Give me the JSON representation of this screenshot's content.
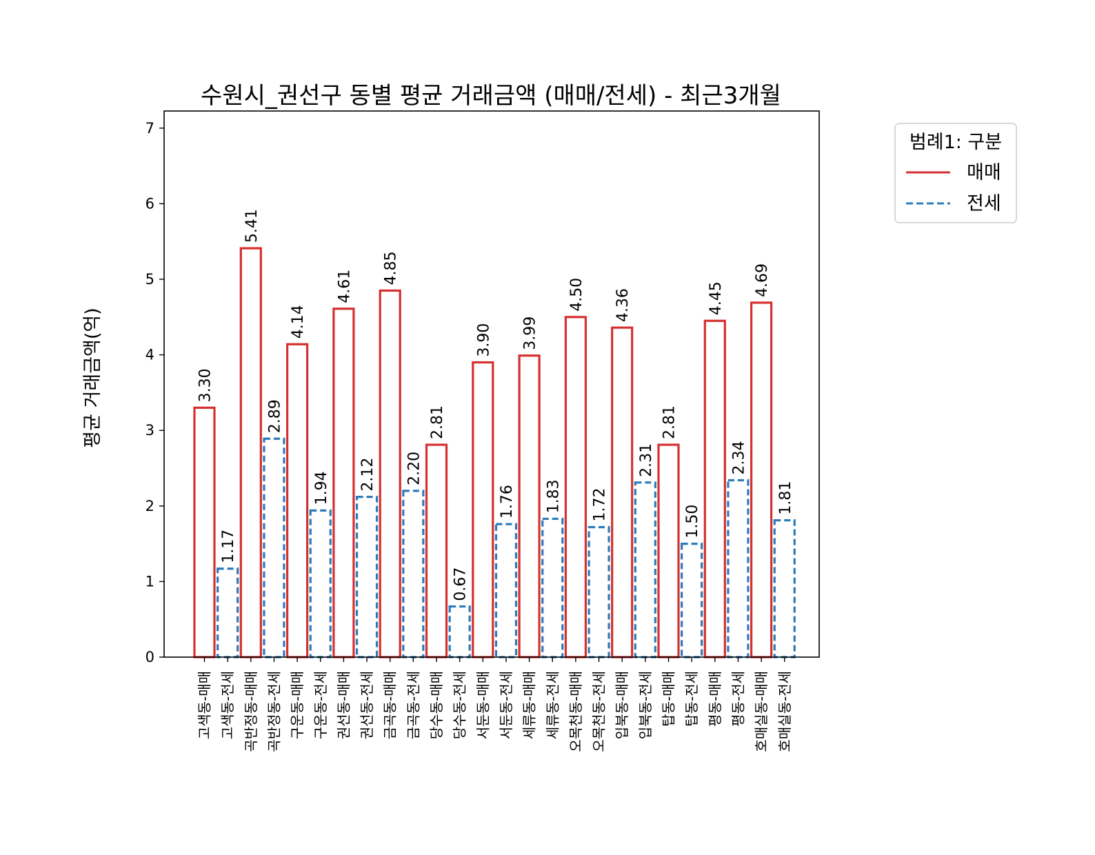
{
  "chart_data": {
    "type": "bar",
    "title": "수원시_권선구 동별 평균 거래금액 (매매/전세) - 최근3개월",
    "xlabel": "",
    "ylabel": "평균 거래금액(억)",
    "ylim": [
      0,
      7.2
    ],
    "yticks": [
      "0",
      "1",
      "2",
      "3",
      "4",
      "5",
      "6",
      "7"
    ],
    "grid": false,
    "legend": {
      "title": "범례1: 구분",
      "placement": "outside top-right",
      "entries": [
        {
          "label": "매매",
          "color": "#d62f2f",
          "style": "solid"
        },
        {
          "label": "전세",
          "color": "#2b7bb9",
          "style": "dashed"
        }
      ]
    },
    "categories": [
      "고색동-매매",
      "고색동-전세",
      "곡반정동-매매",
      "곡반정동-전세",
      "구운동-매매",
      "구운동-전세",
      "권선동-매매",
      "권선동-전세",
      "금곡동-매매",
      "금곡동-전세",
      "당수동-매매",
      "당수동-전세",
      "서둔동-매매",
      "서둔동-전세",
      "세류동-매매",
      "세류동-전세",
      "오목천동-매매",
      "오목천동-전세",
      "입북동-매매",
      "입북동-전세",
      "탑동-매매",
      "탑동-전세",
      "평동-매매",
      "평동-전세",
      "호매실동-매매",
      "호매실동-전세"
    ],
    "values": [
      3.3,
      1.17,
      5.41,
      2.89,
      4.14,
      1.94,
      4.61,
      2.12,
      4.85,
      2.2,
      2.81,
      0.67,
      3.9,
      1.76,
      3.99,
      1.83,
      4.5,
      1.72,
      4.36,
      2.31,
      2.81,
      1.5,
      4.45,
      2.34,
      4.69,
      1.81
    ],
    "value_labels": [
      "3.30",
      "1.17",
      "5.41",
      "2.89",
      "4.14",
      "1.94",
      "4.61",
      "2.12",
      "4.85",
      "2.20",
      "2.81",
      "0.67",
      "3.90",
      "1.76",
      "3.99",
      "1.83",
      "4.50",
      "1.72",
      "4.36",
      "2.31",
      "2.81",
      "1.50",
      "4.45",
      "2.34",
      "4.69",
      "1.81"
    ],
    "series_type": [
      "매매",
      "전세",
      "매매",
      "전세",
      "매매",
      "전세",
      "매매",
      "전세",
      "매매",
      "전세",
      "매매",
      "전세",
      "매매",
      "전세",
      "매매",
      "전세",
      "매매",
      "전세",
      "매매",
      "전세",
      "매매",
      "전세",
      "매매",
      "전세",
      "매매",
      "전세"
    ]
  }
}
